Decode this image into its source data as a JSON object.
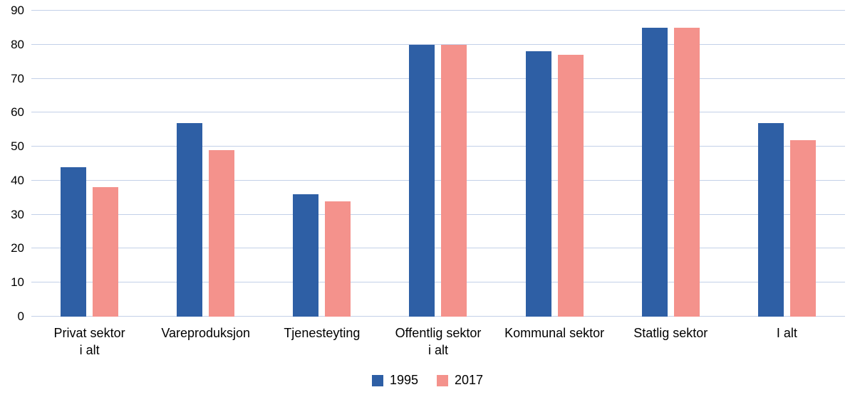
{
  "chart_data": {
    "type": "bar",
    "title": "",
    "xlabel": "",
    "ylabel": "",
    "ylim": [
      0,
      90
    ],
    "yticks": [
      0,
      10,
      20,
      30,
      40,
      50,
      60,
      70,
      80,
      90
    ],
    "grid": true,
    "legend_position": "bottom",
    "categories": [
      "Privat sektor\ni alt",
      "Vareproduksjon",
      "Tjenesteyting",
      "Offentlig sektor\ni alt",
      "Kommunal sektor",
      "Statlig sektor",
      "I alt"
    ],
    "series": [
      {
        "name": "1995",
        "color": "#2e5fa5",
        "values": [
          44,
          57,
          36,
          80,
          78,
          85,
          57
        ]
      },
      {
        "name": "2017",
        "color": "#f4928c",
        "values": [
          38,
          49,
          34,
          80,
          77,
          85,
          52
        ]
      }
    ]
  },
  "colors": {
    "gridline": "#c3d0e8",
    "background": "#ffffff",
    "text": "#000000"
  }
}
